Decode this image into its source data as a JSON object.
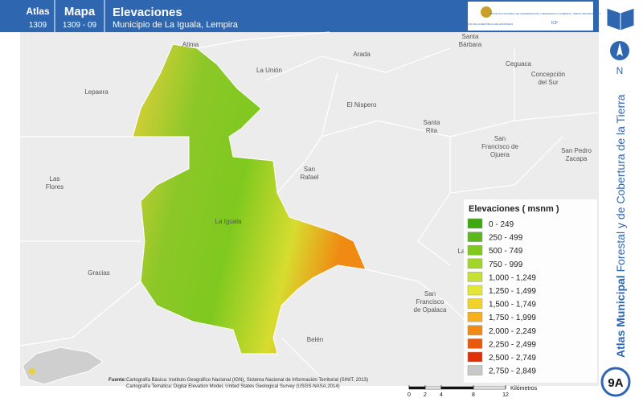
{
  "header": {
    "atlas_label": "Atlas",
    "atlas_code": "1309",
    "map_label": "Mapa",
    "map_code": "1309 - 09",
    "title": "Elevaciones",
    "subtitle": "Municipio de La Iguala, Lempira",
    "logo_left": "GOBIERNO DE LA REPÚBLICA DE HONDURAS",
    "logo_right": "INSTITUTO NACIONAL DE CONSERVACIÓN Y DESARROLLO FORESTAL, ÁREAS PROTEGIDAS Y VIDA SILVESTRE",
    "logo_right_code": "ICF"
  },
  "sidebar": {
    "north": "N",
    "series_bold": "Atlas Municipal",
    "series_rest": "Forestal y de Cobertura de la Tierra",
    "sheet": "9A"
  },
  "places": [
    [
      "Atima"
    ],
    [
      "La Unión"
    ],
    [
      "Arada"
    ],
    [
      "Santa",
      "Bárbara"
    ],
    [
      "Ceguaca"
    ],
    [
      "Concepción",
      "del Sur"
    ],
    [
      "Lepaera"
    ],
    [
      "El Nispero"
    ],
    [
      "Santa",
      "Rita"
    ],
    [
      "San",
      "Francisco de",
      "Ojuera"
    ],
    [
      "San Pedro",
      "Zacapa"
    ],
    [
      "Las",
      "Flores"
    ],
    [
      "San",
      "Rafael"
    ],
    [
      "La Iguala"
    ],
    [
      "Gracias"
    ],
    [
      "San",
      "Francisco",
      "de Opalaca"
    ],
    [
      "Belén"
    ],
    [
      "La"
    ]
  ],
  "legend": {
    "title": "Elevaciones ( msnm )",
    "items": [
      {
        "label": "0 - 249",
        "color": "#3ea80f"
      },
      {
        "label": "250 - 499",
        "color": "#5cb81a"
      },
      {
        "label": "500 - 749",
        "color": "#7fc91f"
      },
      {
        "label": "750 - 999",
        "color": "#a3d42a"
      },
      {
        "label": "1,000 - 1,249",
        "color": "#c7e034"
      },
      {
        "label": "1,250 - 1,499",
        "color": "#e3e635"
      },
      {
        "label": "1,500 - 1,749",
        "color": "#f0d22a"
      },
      {
        "label": "1,750 - 1,999",
        "color": "#f5b01c"
      },
      {
        "label": "2,000 - 2,249",
        "color": "#f08a12"
      },
      {
        "label": "2,250 - 2,499",
        "color": "#ea5a0c"
      },
      {
        "label": "2,500 - 2,749",
        "color": "#e0300a"
      },
      {
        "label": "2,750 - 2,849",
        "color": "#c8c8c8"
      }
    ]
  },
  "source": {
    "label": "Fuente:",
    "line1": "Cartografía Básica: Instituto Geográfico Nacional (IGN), Sistema Nacional de Información Territorial (SINIT, 2013)",
    "line2": "Cartografía Temática: Digital Elevation Model, United States Geological Survey (USGS-NASA,2014)"
  },
  "scale": {
    "ticks": [
      0,
      2,
      4,
      8,
      12
    ],
    "unit": "Kilómetros"
  }
}
